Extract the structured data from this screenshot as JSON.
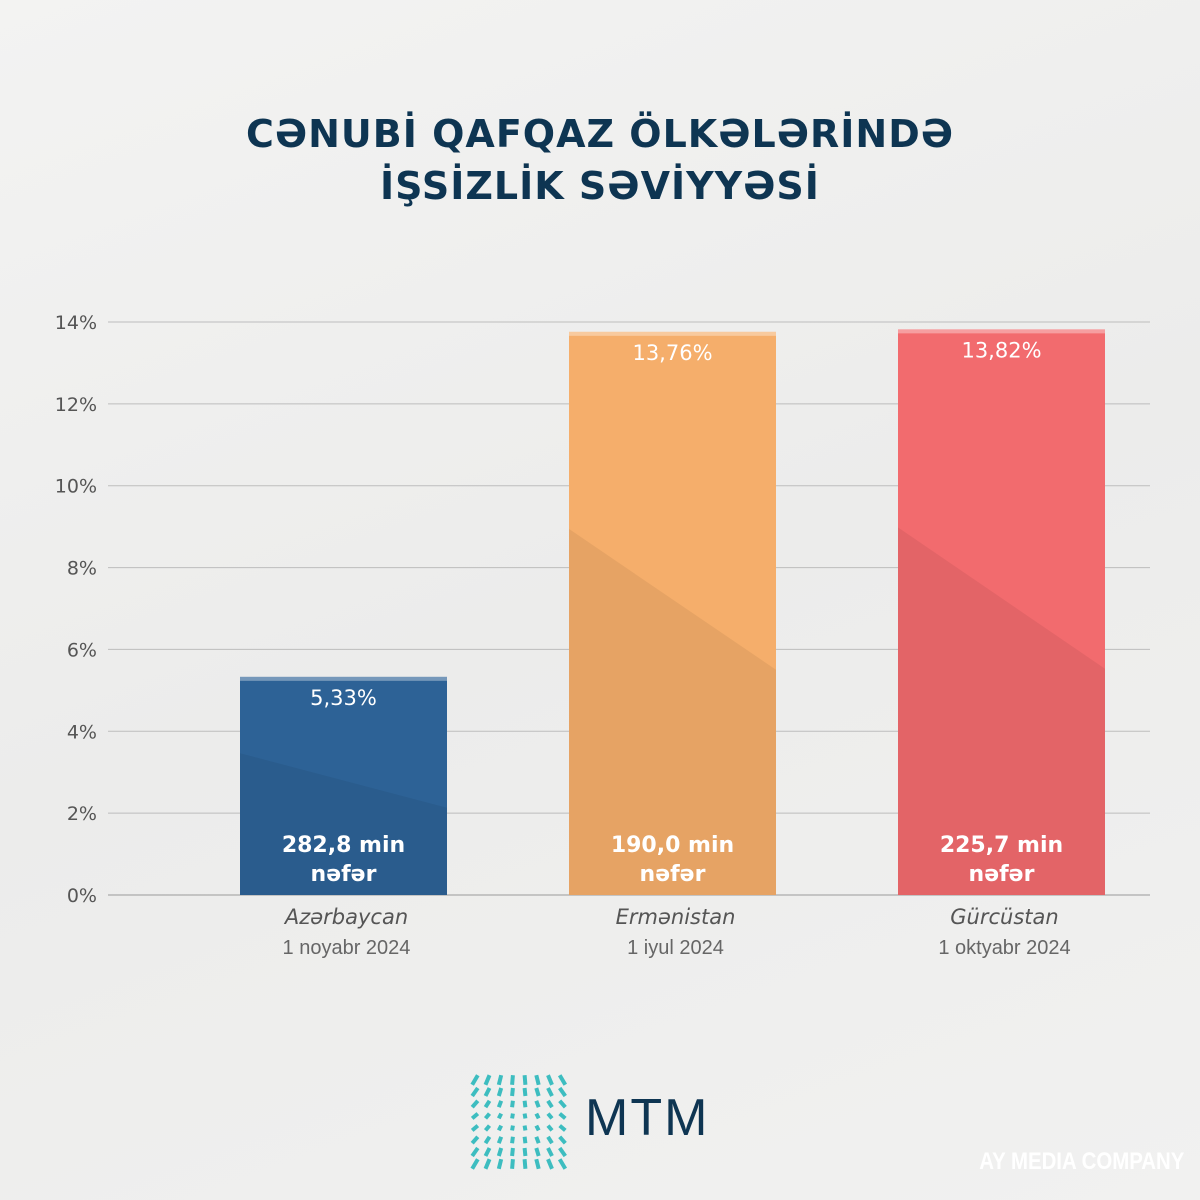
{
  "title_line1": "CƏNUBİ QAFQAZ ÖLKƏLƏRİNDƏ",
  "title_line2": "İŞSİZLİK SƏVİYYƏSİ",
  "chart_data": {
    "type": "bar",
    "title": "Cənubi Qafqaz ölkələrində işsizlik səviyyəsi",
    "categories": [
      "Azərbaycan",
      "Ermənistan",
      "Gürcüstan"
    ],
    "dates": [
      "1 noyabr 2024",
      "1 iyul 2024",
      "1 oktyabr 2024"
    ],
    "values": [
      5.33,
      13.76,
      13.82
    ],
    "value_labels": [
      "5,33%",
      "13,76%",
      "13,82%"
    ],
    "people_labels": [
      "282,8 min",
      "190,0 min",
      "225,7 min"
    ],
    "people_unit": "nəfər",
    "colors": [
      "#2d6296",
      "#f5ae6b",
      "#f26b6e"
    ],
    "ylim": [
      0,
      14
    ],
    "yticks": [
      0,
      2,
      4,
      6,
      8,
      10,
      12,
      14
    ],
    "ytick_labels": [
      "0%",
      "2%",
      "4%",
      "6%",
      "8%",
      "10%",
      "12%",
      "14%"
    ],
    "grid": true,
    "xlabel": "",
    "ylabel": ""
  },
  "logo": {
    "text": "MTM",
    "color": "#1fb5b8"
  },
  "watermark": "AY MEDIA COMPANY"
}
